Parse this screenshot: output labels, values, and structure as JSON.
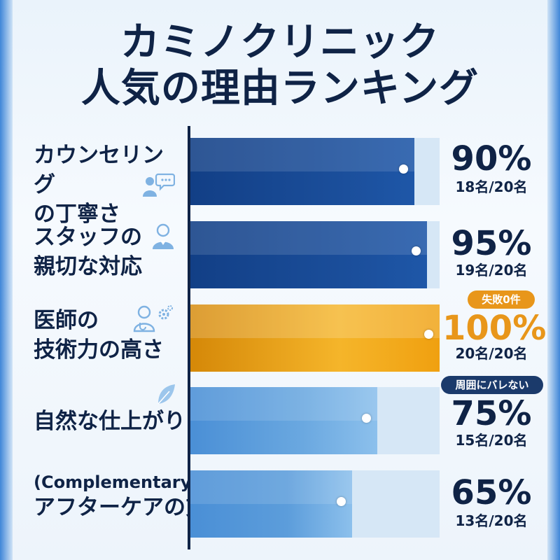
{
  "title_line1": "カミノクリニック",
  "title_line2": "人気の理由ランキング",
  "chart_data": {
    "type": "bar",
    "orientation": "horizontal",
    "xlim": [
      0,
      100
    ],
    "grid": false,
    "categories": [
      "カウンセリングの丁寧さ",
      "スタッフの親切な対応",
      "医師の技術力の高さ",
      "自然な仕上がり",
      "(Complementary) アフターケアの充実"
    ],
    "values": [
      90,
      95,
      100,
      75,
      65
    ],
    "value_labels": [
      "90%",
      "95%",
      "100%",
      "75%",
      "65%"
    ],
    "counts": [
      "18名/20名",
      "19名/20名",
      "20名/20名",
      "15名/20名",
      "13名/20名"
    ],
    "annotations": [
      {
        "category": "医師の技術力の高さ",
        "text": "失敗0件"
      },
      {
        "category": "自然な仕上がり",
        "text": "周囲にバレない"
      }
    ]
  },
  "rows": [
    {
      "label_lines": [
        "カウンセリング",
        "の丁寧さ"
      ],
      "icon": "counseling-chat-icon",
      "color": "#1b4f9c"
    },
    {
      "label_lines": [
        "スタッフの",
        "親切な対応"
      ],
      "icon": "staff-person-icon",
      "color": "#1b4f9c"
    },
    {
      "label_lines": [
        "医師の",
        "技術力の高さ"
      ],
      "icon": "doctor-gear-icon",
      "color": "#f0a010"
    },
    {
      "label_lines": [
        "自然な仕上がり"
      ],
      "icon": "leaf-icon",
      "color": "#6aa8e0"
    },
    {
      "label_lines": [
        "(Complementary)",
        "アフターケアの充実"
      ],
      "icon": "",
      "color": "#5c9ddb"
    }
  ],
  "colors": {
    "navy": "#0f2346",
    "bar_blue": "#1b4f9c",
    "bar_gold": "#f0a010",
    "bar_light": "#6aa8e0",
    "track": "#d6e7f6",
    "badge_gold": "#e8961a",
    "badge_navy": "#1b3a6b"
  }
}
